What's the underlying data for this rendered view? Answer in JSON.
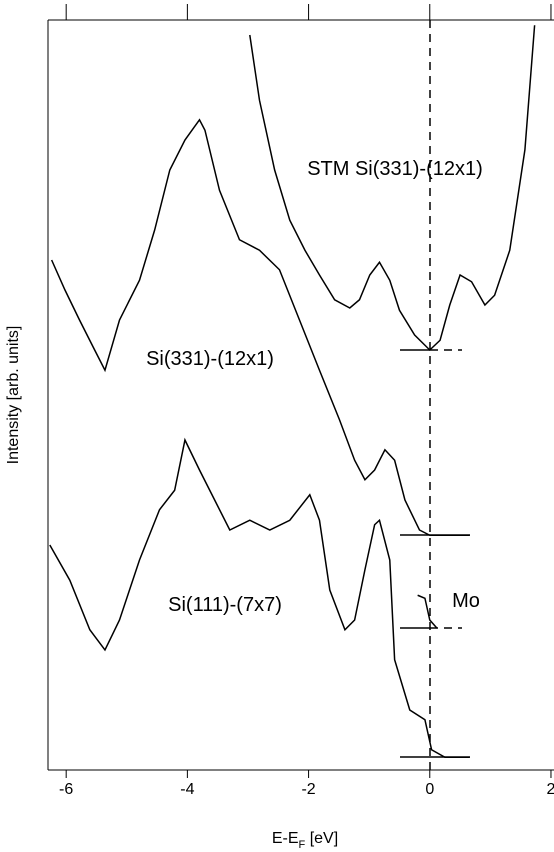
{
  "chart_data": {
    "type": "line",
    "xlabel": [
      "E-E",
      "F",
      " [eV]"
    ],
    "ylabel": "Intensity [arb. units]",
    "xlim": [
      -6.3,
      2.05
    ],
    "ylim": [
      0,
      100
    ],
    "xticks": [
      -6,
      -4,
      -2,
      0,
      2
    ],
    "series": [
      {
        "name": "STM Si(331)-(12x1)",
        "color": "#000000",
        "x": [
          -2.97,
          -2.81,
          -2.56,
          -2.31,
          -2.06,
          -1.82,
          -1.57,
          -1.32,
          -1.16,
          -0.99,
          -0.83,
          -0.66,
          -0.5,
          -0.25,
          0,
          0.17,
          0.33,
          0.5,
          0.69,
          0.91,
          1.07,
          1.32,
          1.57,
          1.73
        ],
        "values": [
          98.0,
          89.3,
          80.0,
          73.3,
          69.3,
          66.0,
          62.7,
          61.6,
          62.7,
          66.0,
          67.7,
          65.3,
          61.3,
          58.0,
          56.0,
          57.3,
          62.0,
          66.0,
          65.1,
          62.0,
          63.3,
          69.3,
          82.7,
          99.3
        ]
      },
      {
        "name": "Si(331)-(12x1)",
        "color": "#000000",
        "x": [
          -6.24,
          -6.02,
          -5.78,
          -5.53,
          -5.36,
          -5.12,
          -4.79,
          -4.54,
          -4.29,
          -4.04,
          -3.8,
          -3.71,
          -3.47,
          -3.14,
          -2.81,
          -2.48,
          -2.15,
          -1.82,
          -1.49,
          -1.24,
          -1.07,
          -0.91,
          -0.74,
          -0.58,
          -0.41,
          -0.17,
          0,
          0.66
        ],
        "values": [
          68.0,
          64.0,
          60.0,
          56.0,
          53.3,
          60.0,
          65.3,
          72.0,
          80.0,
          84.0,
          86.7,
          85.3,
          77.3,
          70.7,
          69.3,
          66.7,
          60.0,
          53.3,
          46.7,
          41.3,
          38.7,
          40.0,
          42.7,
          41.3,
          36.0,
          32.0,
          31.3,
          31.3
        ]
      },
      {
        "name": "Si(111)-(7x7)",
        "color": "#000000",
        "x": [
          -6.27,
          -5.94,
          -5.61,
          -5.36,
          -5.12,
          -4.79,
          -4.46,
          -4.21,
          -4.04,
          -3.8,
          -3.55,
          -3.3,
          -2.97,
          -2.64,
          -2.31,
          -1.98,
          -1.82,
          -1.65,
          -1.4,
          -1.24,
          -1.07,
          -0.91,
          -0.83,
          -0.66,
          -0.58,
          -0.33,
          -0.08,
          0.03,
          0.25,
          0.66
        ],
        "values": [
          30.0,
          25.3,
          18.7,
          16.0,
          20.0,
          28.0,
          34.7,
          37.3,
          44.0,
          40.0,
          36.0,
          32.0,
          33.3,
          32.0,
          33.3,
          36.7,
          33.3,
          24.0,
          18.7,
          20.0,
          26.7,
          32.7,
          33.3,
          28.0,
          14.7,
          8.0,
          6.7,
          2.7,
          1.7,
          1.7
        ]
      },
      {
        "name": "Mo",
        "color": "#000000",
        "x": [
          -0.2,
          -0.08,
          0,
          0.12
        ],
        "values": [
          23.3,
          22.9,
          20.0,
          18.9
        ]
      }
    ]
  }
}
